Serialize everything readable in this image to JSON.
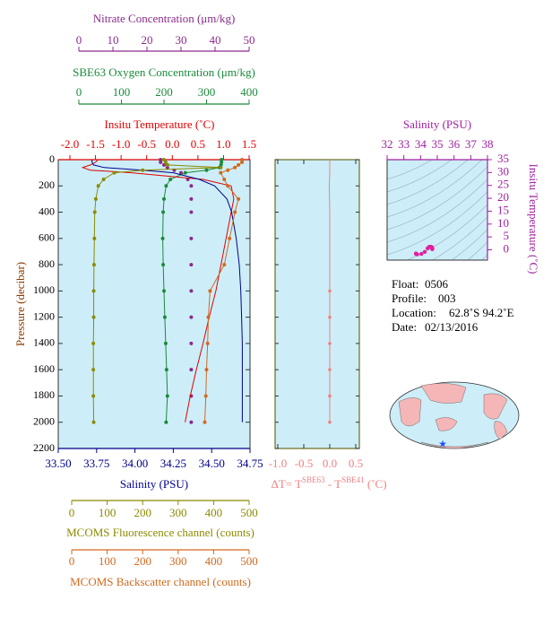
{
  "chart_data": [
    {
      "type": "profile",
      "ylabel": "Pressure (decibar)",
      "ylim": [
        0,
        2200
      ],
      "yticks": [
        0,
        200,
        400,
        600,
        800,
        1000,
        1200,
        1400,
        1600,
        1800,
        2000,
        2200
      ],
      "axes": [
        {
          "label": "Nitrate Concentration (μm/kg)",
          "color": "#8b2b8b",
          "xlim": [
            0,
            50
          ],
          "xticks": [
            0,
            10,
            20,
            30,
            40,
            50
          ],
          "series": {
            "style": "dots",
            "pressure": [
              0,
              20,
              40,
              60,
              80,
              100,
              150,
              200,
              300,
              400,
              600,
              800,
              1000,
              1200,
              1400,
              1600,
              1800,
              2000
            ],
            "values": [
              24,
              24,
              25,
              26,
              28,
              30,
              32,
              33,
              33,
              33,
              33,
              33,
              33,
              33,
              33,
              33,
              33,
              33
            ]
          }
        },
        {
          "label": "SBE63 Oxygen Concentration (μm/kg)",
          "color": "#1a8a3a",
          "xlim": [
            0,
            400
          ],
          "xticks": [
            0,
            100,
            200,
            300,
            400
          ],
          "series": {
            "style": "line+dots",
            "pressure": [
              0,
              20,
              40,
              60,
              80,
              100,
              150,
              200,
              300,
              400,
              600,
              800,
              1000,
              1200,
              1400,
              1600,
              1800,
              2000
            ],
            "values": [
              335,
              335,
              334,
              330,
              300,
              250,
              215,
              205,
              200,
              198,
              197,
              198,
              200,
              202,
              204,
              206,
              208,
              205
            ]
          }
        },
        {
          "label": "Insitu Temperature (˚C)",
          "color": "#e00000",
          "xlim": [
            -2,
            1.5
          ],
          "xticks": [
            {
              "value": -2,
              "label": "-2.0"
            },
            -1.5,
            {
              "value": -1,
              "label": "-1.0"
            },
            -0.5,
            {
              "value": 0,
              "label": "0.0"
            },
            0.5,
            {
              "value": 1,
              "label": "1.0"
            },
            1.5
          ],
          "series": {
            "style": "line",
            "pressure": [
              0,
              20,
              40,
              60,
              80,
              100,
              150,
              200,
              300,
              400,
              600,
              800,
              1000,
              1200,
              1400,
              1600,
              1800,
              2000
            ],
            "values": [
              -1.45,
              -1.5,
              -1.6,
              -1.75,
              -1.6,
              -0.8,
              0.6,
              1.15,
              1.2,
              1.15,
              1.05,
              0.95,
              0.85,
              0.72,
              0.6,
              0.47,
              0.35,
              0.25
            ]
          }
        },
        {
          "label": "Salinity (PSU)",
          "color": "#00008b",
          "xlim": [
            33.5,
            34.75
          ],
          "xticks": [
            {
              "value": 33.5,
              "label": "33.50"
            },
            33.75,
            {
              "value": 34,
              "label": "34.00"
            },
            34.25,
            {
              "value": 34.5,
              "label": "34.50"
            },
            34.75
          ],
          "series": {
            "style": "line",
            "pressure": [
              0,
              20,
              40,
              60,
              80,
              100,
              150,
              200,
              300,
              400,
              600,
              800,
              1000,
              1200,
              1400,
              1600,
              1800,
              2000
            ],
            "values": [
              33.72,
              33.72,
              33.73,
              33.8,
              34.05,
              34.25,
              34.42,
              34.52,
              34.6,
              34.63,
              34.66,
              34.68,
              34.69,
              34.695,
              34.7,
              34.7,
              34.7,
              34.7
            ]
          }
        },
        {
          "label": "MCOMS Fluorescence channel (counts)",
          "color": "#8b8b00",
          "xlim": [
            0,
            500
          ],
          "xticks": [
            0,
            100,
            200,
            300,
            400,
            500
          ],
          "series": {
            "style": "line+dots",
            "pressure": [
              0,
              20,
              40,
              60,
              80,
              100,
              150,
              200,
              300,
              400,
              600,
              800,
              1000,
              1200,
              1400,
              1600,
              1800,
              2000
            ],
            "values": [
              260,
              265,
              270,
              420,
              200,
              120,
              90,
              75,
              68,
              65,
              64,
              63,
              62,
              62,
              61,
              61,
              61,
              62
            ]
          }
        },
        {
          "label": "MCOMS Backscatter channel (counts)",
          "color": "#d2691e",
          "xlim": [
            0,
            500
          ],
          "xticks": [
            0,
            100,
            200,
            300,
            400,
            500
          ],
          "series": {
            "style": "line+dots",
            "pressure": [
              0,
              20,
              40,
              60,
              80,
              100,
              150,
              200,
              300,
              400,
              600,
              800,
              1000,
              1200,
              1400,
              1600,
              1800,
              2000
            ],
            "values": [
              480,
              480,
              470,
              460,
              440,
              420,
              430,
              440,
              470,
              460,
              445,
              430,
              390,
              385,
              383,
              380,
              378,
              375
            ]
          }
        }
      ]
    },
    {
      "type": "line",
      "xlabel_parts": [
        "ΔT= T",
        "SBE63",
        " - T",
        "SBE41",
        " (˚C)"
      ],
      "color": "#f08080",
      "xlim": [
        -1,
        0.5
      ],
      "xticks": [
        {
          "value": -1,
          "label": "-1.0"
        },
        -0.5,
        {
          "value": 0,
          "label": "0.0"
        },
        0.5
      ],
      "ylim": [
        0,
        2200
      ],
      "pressure": [
        0,
        100,
        200,
        400,
        600,
        800,
        1000,
        1200,
        1400,
        1600,
        1800,
        2000
      ],
      "values": [
        0,
        0,
        -0.01,
        0,
        0,
        0,
        0,
        0,
        0,
        0,
        0,
        0
      ]
    },
    {
      "type": "scatter",
      "title": "Salinity (PSU)",
      "ylabel": "Insitu Temperature (˚C)",
      "color": "#e020a0",
      "xlim": [
        32,
        38
      ],
      "xticks": [
        32,
        33,
        34,
        35,
        36,
        37,
        38
      ],
      "ylim": [
        -4,
        35
      ],
      "yticks": [
        0,
        5,
        10,
        15,
        20,
        25,
        30,
        35
      ],
      "x": [
        33.72,
        33.72,
        33.73,
        33.8,
        34.05,
        34.25,
        34.42,
        34.52,
        34.6,
        34.63,
        34.66,
        34.68,
        34.69,
        34.695,
        34.7,
        34.7,
        34.7,
        34.7
      ],
      "y": [
        -1.45,
        -1.5,
        -1.6,
        -1.75,
        -1.6,
        -0.8,
        0.6,
        1.15,
        1.2,
        1.15,
        1.05,
        0.95,
        0.85,
        0.72,
        0.6,
        0.47,
        0.35,
        0.25
      ]
    }
  ],
  "info": [
    {
      "label": "Float:",
      "value": "0506"
    },
    {
      "label": "Profile:",
      "value": "003"
    },
    {
      "label": "Location:",
      "value": "62.8˚S  94.2˚E"
    },
    {
      "label": "Date:",
      "value": "02/13/2016"
    }
  ]
}
